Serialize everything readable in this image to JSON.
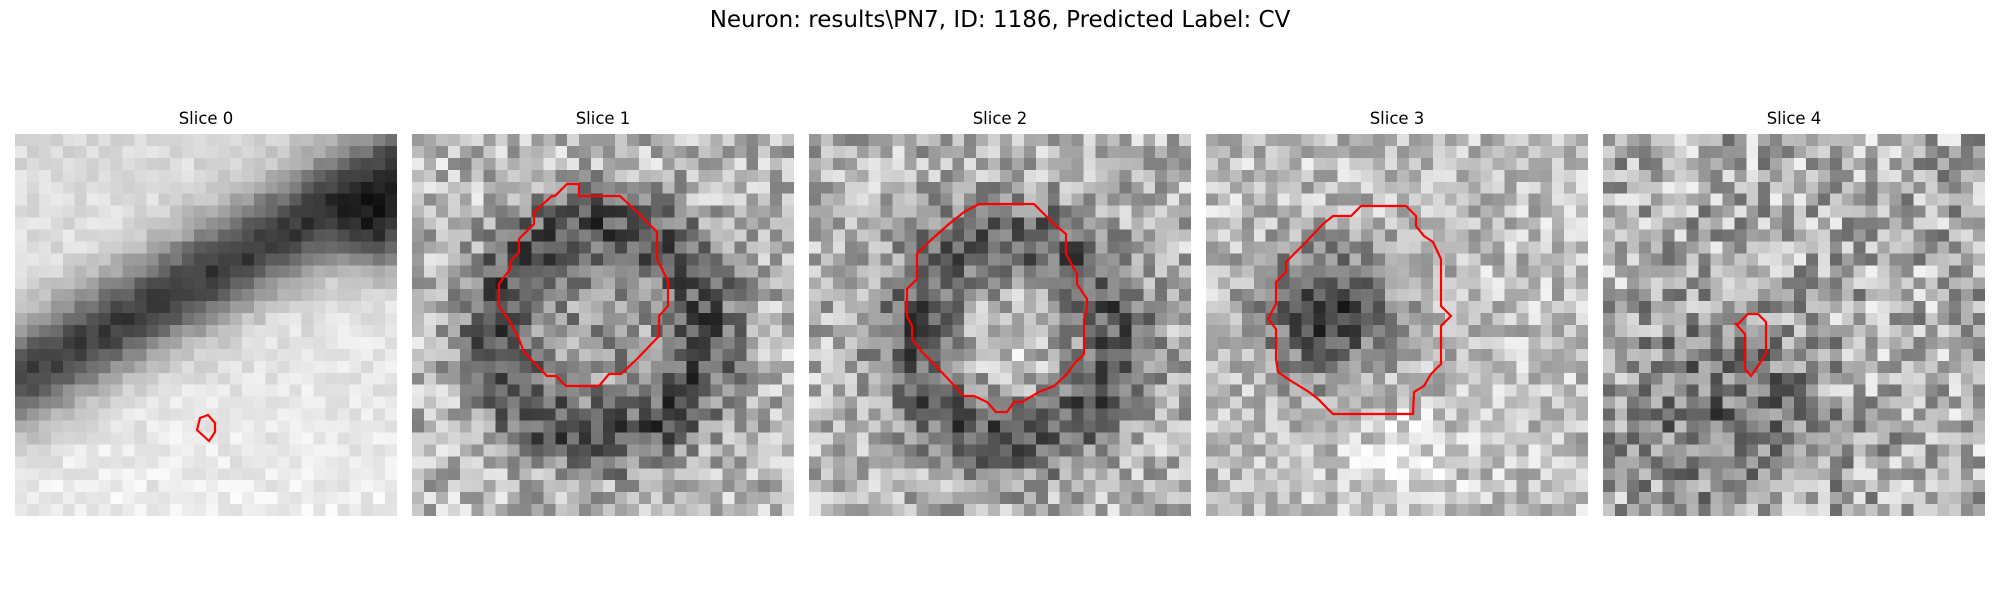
{
  "figure": {
    "title": "Neuron: results\\PN7, ID: 1186, Predicted Label: CV"
  },
  "panels": [
    {
      "title": "Slice 0",
      "image": "blurred grayscale membrane band, dark diagonal stripe",
      "contour_color": "#ff0000",
      "contour": "small"
    },
    {
      "title": "Slice 1",
      "image": "noisy grayscale vesicle-like dark ring",
      "contour_color": "#ff0000",
      "contour": "large"
    },
    {
      "title": "Slice 2",
      "image": "noisy grayscale vesicle-like ring",
      "contour_color": "#ff0000",
      "contour": "large"
    },
    {
      "title": "Slice 3",
      "image": "noisy grayscale dark cluster",
      "contour_color": "#ff0000",
      "contour": "medium"
    },
    {
      "title": "Slice 4",
      "image": "noisy grayscale texture",
      "contour_color": "#ff0000",
      "contour": "small"
    }
  ]
}
